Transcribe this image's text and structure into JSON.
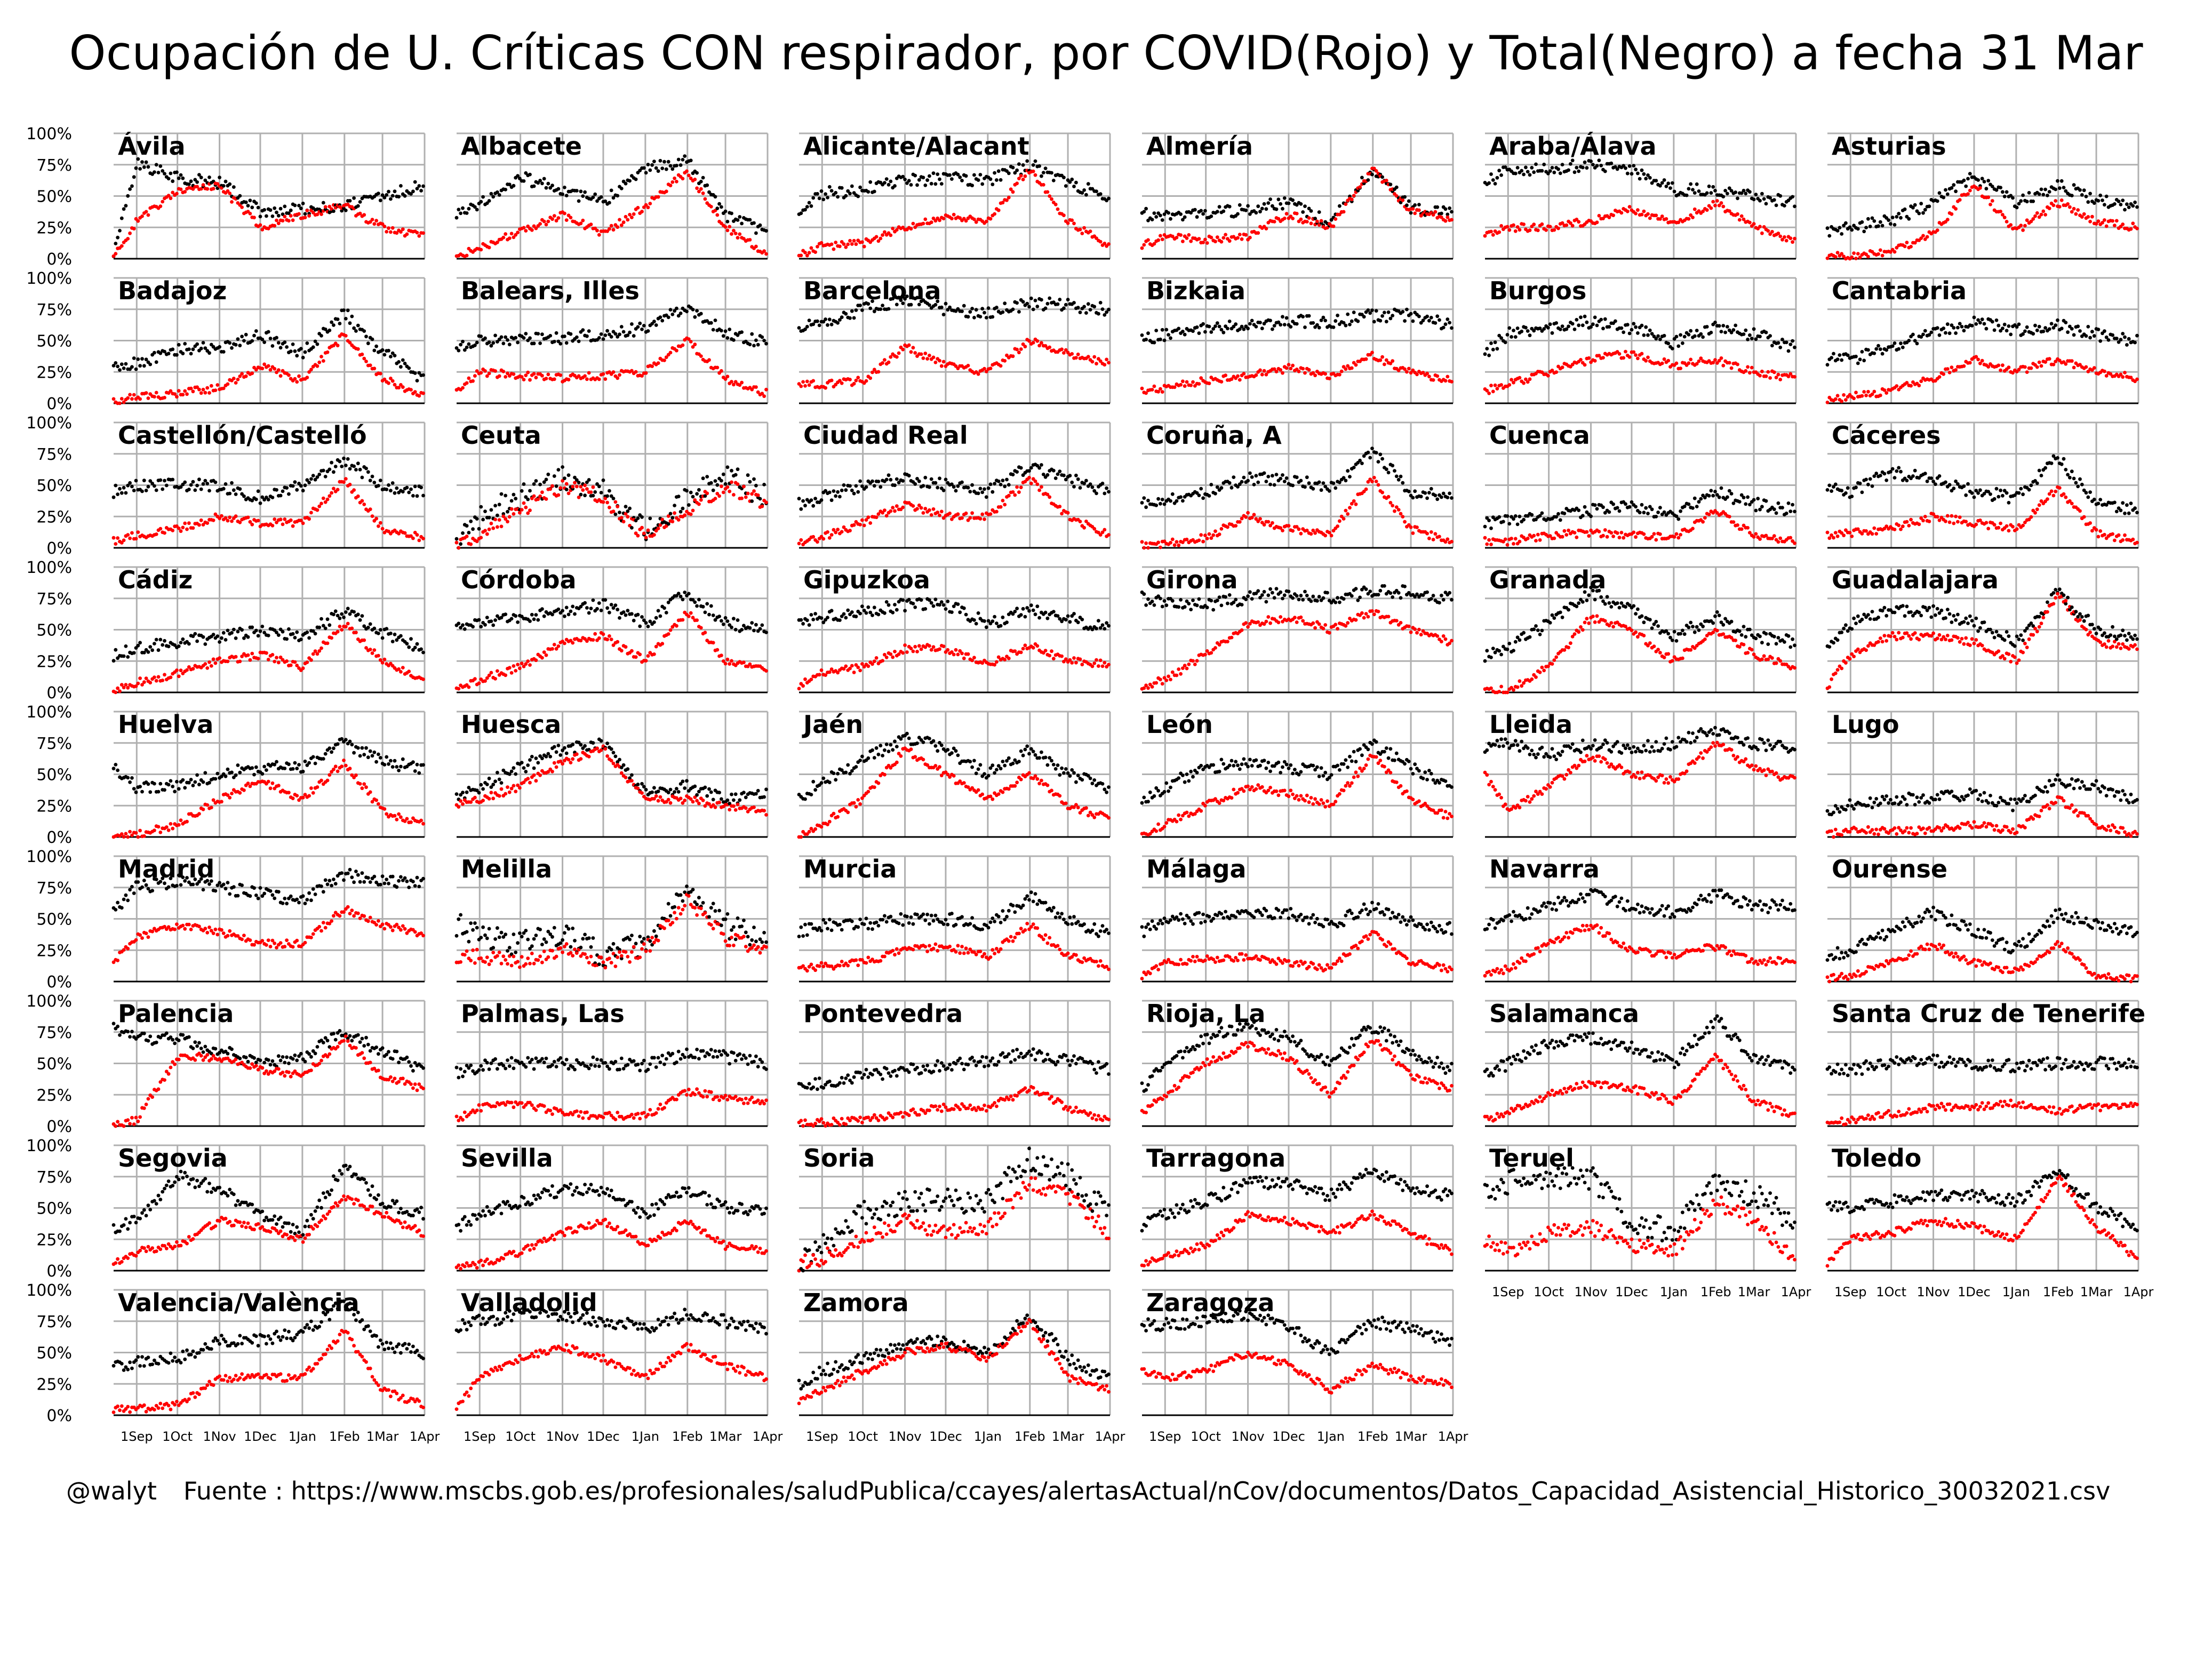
{
  "title": "Ocupación de U. Críticas CON respirador, por COVID(Rojo) y Total(Negro) a fecha 31 Mar",
  "footer": {
    "handle": "@walyt",
    "source": "Fuente : https://www.mscbs.gob.es/profesionales/saludPublica/ccayes/alertasActual/nCov/documentos/Datos_Capacidad_Asistencial_Historico_30032021.csv"
  },
  "colors": {
    "covid": "#ff0000",
    "total": "#000000",
    "grid": "#b0b0b0"
  },
  "chart_data": {
    "type": "scatter",
    "layout": "small-multiples 6 columns",
    "y_ticks": [
      "100%",
      "75%",
      "50%",
      "25%",
      "0%"
    ],
    "ylim": [
      0,
      100
    ],
    "x_ticks": [
      "1Sep",
      "1Oct",
      "1Nov",
      "1Dec",
      "1Jan",
      "1Feb",
      "1Mar",
      "1Apr"
    ],
    "xlim": [
      "2020-08-15",
      "2021-04-01"
    ],
    "series_colors": {
      "covid": "red",
      "total": "black"
    },
    "knot_dates": [
      "Aug 15",
      "Sep 1",
      "Oct 1",
      "Nov 1",
      "Dec 1",
      "Jan 1",
      "Feb 1",
      "Mar 1",
      "Mar 31"
    ],
    "panels": [
      {
        "name": "Ávila",
        "total": [
          5,
          75,
          65,
          60,
          38,
          40,
          42,
          50,
          58
        ],
        "covid": [
          0,
          30,
          55,
          58,
          25,
          35,
          42,
          25,
          18
        ]
      },
      {
        "name": "Albacete",
        "total": [
          35,
          45,
          65,
          55,
          45,
          72,
          78,
          35,
          22
        ],
        "covid": [
          3,
          8,
          22,
          35,
          20,
          42,
          70,
          25,
          5
        ]
      },
      {
        "name": "Alicante/Alacant",
        "total": [
          40,
          52,
          55,
          62,
          65,
          62,
          75,
          60,
          50
        ],
        "covid": [
          3,
          10,
          12,
          25,
          35,
          30,
          72,
          30,
          10
        ]
      },
      {
        "name": "Almería",
        "total": [
          35,
          35,
          35,
          40,
          45,
          28,
          72,
          40,
          38
        ],
        "covid": [
          10,
          18,
          15,
          18,
          35,
          25,
          72,
          38,
          32
        ]
      },
      {
        "name": "Araba/Álava",
        "total": [
          60,
          70,
          72,
          75,
          70,
          55,
          55,
          50,
          45
        ],
        "covid": [
          20,
          25,
          25,
          30,
          40,
          28,
          45,
          25,
          15
        ]
      },
      {
        "name": "Asturias",
        "total": [
          22,
          25,
          30,
          45,
          65,
          45,
          58,
          48,
          40
        ],
        "covid": [
          2,
          2,
          5,
          20,
          60,
          22,
          45,
          30,
          25
        ]
      },
      {
        "name": "Badajoz",
        "total": [
          28,
          32,
          42,
          45,
          55,
          40,
          72,
          40,
          20
        ],
        "covid": [
          2,
          5,
          8,
          12,
          30,
          18,
          55,
          20,
          5
        ]
      },
      {
        "name": "Balears, Illes",
        "total": [
          45,
          50,
          52,
          52,
          55,
          60,
          78,
          55,
          48
        ],
        "covid": [
          10,
          25,
          22,
          20,
          22,
          25,
          50,
          20,
          8
        ]
      },
      {
        "name": "Barcelona",
        "total": [
          60,
          65,
          75,
          82,
          75,
          72,
          80,
          78,
          75
        ],
        "covid": [
          15,
          15,
          18,
          45,
          30,
          25,
          50,
          40,
          32
        ]
      },
      {
        "name": "Bizkaia",
        "total": [
          50,
          55,
          60,
          62,
          65,
          65,
          70,
          70,
          62
        ],
        "covid": [
          10,
          12,
          18,
          22,
          28,
          22,
          38,
          25,
          18
        ]
      },
      {
        "name": "Burgos",
        "total": [
          40,
          55,
          60,
          65,
          60,
          48,
          60,
          55,
          45
        ],
        "covid": [
          10,
          15,
          25,
          35,
          40,
          30,
          35,
          25,
          20
        ]
      },
      {
        "name": "Cantabria",
        "total": [
          35,
          35,
          45,
          55,
          65,
          58,
          62,
          55,
          50
        ],
        "covid": [
          2,
          5,
          10,
          20,
          35,
          25,
          35,
          25,
          20
        ]
      },
      {
        "name": "Castellón/Castelló",
        "total": [
          45,
          50,
          50,
          50,
          40,
          50,
          70,
          50,
          45
        ],
        "covid": [
          5,
          10,
          15,
          25,
          20,
          20,
          55,
          15,
          8
        ]
      },
      {
        "name": "Ceuta",
        "total": [
          0,
          25,
          40,
          55,
          45,
          12,
          40,
          60,
          40
        ],
        "covid": [
          0,
          10,
          30,
          50,
          40,
          8,
          30,
          50,
          35
        ]
      },
      {
        "name": "Ciudad Real",
        "total": [
          35,
          40,
          50,
          55,
          50,
          45,
          65,
          55,
          45
        ],
        "covid": [
          5,
          8,
          20,
          35,
          25,
          25,
          55,
          25,
          10
        ]
      },
      {
        "name": "Coruña, A",
        "total": [
          35,
          38,
          45,
          55,
          55,
          48,
          78,
          45,
          40
        ],
        "covid": [
          2,
          3,
          8,
          25,
          15,
          12,
          55,
          15,
          5
        ]
      },
      {
        "name": "Cuenca",
        "total": [
          20,
          22,
          25,
          30,
          35,
          25,
          45,
          35,
          30
        ],
        "covid": [
          5,
          5,
          10,
          12,
          10,
          8,
          30,
          10,
          5
        ]
      },
      {
        "name": "Cáceres",
        "total": [
          50,
          45,
          60,
          55,
          45,
          40,
          72,
          35,
          30
        ],
        "covid": [
          10,
          12,
          15,
          25,
          20,
          15,
          48,
          12,
          5
        ]
      },
      {
        "name": "Cádiz",
        "total": [
          30,
          35,
          40,
          45,
          50,
          45,
          65,
          48,
          35
        ],
        "covid": [
          2,
          8,
          15,
          25,
          30,
          20,
          55,
          25,
          10
        ]
      },
      {
        "name": "Córdoba",
        "total": [
          50,
          55,
          60,
          65,
          70,
          55,
          80,
          55,
          50
        ],
        "covid": [
          2,
          10,
          20,
          40,
          45,
          25,
          65,
          25,
          20
        ]
      },
      {
        "name": "Gipuzkoa",
        "total": [
          55,
          60,
          65,
          70,
          70,
          55,
          65,
          60,
          50
        ],
        "covid": [
          5,
          15,
          20,
          35,
          35,
          22,
          38,
          25,
          22
        ]
      },
      {
        "name": "Girona",
        "total": [
          75,
          72,
          70,
          75,
          80,
          75,
          80,
          80,
          75
        ],
        "covid": [
          5,
          10,
          30,
          55,
          60,
          50,
          65,
          50,
          40
        ]
      },
      {
        "name": "Granada",
        "total": [
          30,
          35,
          55,
          80,
          65,
          45,
          60,
          45,
          40
        ],
        "covid": [
          2,
          2,
          20,
          60,
          50,
          25,
          50,
          30,
          20
        ]
      },
      {
        "name": "Guadalajara",
        "total": [
          40,
          55,
          65,
          65,
          55,
          40,
          80,
          50,
          45
        ],
        "covid": [
          5,
          30,
          45,
          45,
          40,
          25,
          78,
          40,
          35
        ]
      },
      {
        "name": "Huelva",
        "total": [
          55,
          40,
          40,
          50,
          55,
          55,
          75,
          60,
          55
        ],
        "covid": [
          0,
          2,
          10,
          30,
          45,
          30,
          60,
          20,
          10
        ]
      },
      {
        "name": "Huesca",
        "total": [
          30,
          40,
          55,
          70,
          75,
          35,
          40,
          30,
          35
        ],
        "covid": [
          25,
          30,
          40,
          60,
          70,
          30,
          30,
          25,
          20
        ]
      },
      {
        "name": "Jaén",
        "total": [
          30,
          45,
          60,
          80,
          70,
          50,
          70,
          50,
          40
        ],
        "covid": [
          2,
          10,
          30,
          70,
          50,
          30,
          50,
          25,
          15
        ]
      },
      {
        "name": "León",
        "total": [
          30,
          40,
          55,
          60,
          55,
          50,
          75,
          55,
          40
        ],
        "covid": [
          2,
          10,
          25,
          40,
          35,
          25,
          65,
          30,
          15
        ]
      },
      {
        "name": "Lleida",
        "total": [
          70,
          75,
          65,
          75,
          70,
          75,
          85,
          75,
          70
        ],
        "covid": [
          50,
          20,
          40,
          65,
          50,
          45,
          75,
          55,
          45
        ]
      },
      {
        "name": "Lugo",
        "total": [
          20,
          25,
          30,
          30,
          35,
          25,
          45,
          40,
          30
        ],
        "covid": [
          2,
          5,
          5,
          5,
          10,
          5,
          30,
          10,
          2
        ]
      },
      {
        "name": "Madrid",
        "total": [
          55,
          75,
          80,
          75,
          70,
          65,
          85,
          80,
          78
        ],
        "covid": [
          15,
          35,
          45,
          40,
          30,
          30,
          58,
          45,
          38
        ]
      },
      {
        "name": "Melilla",
        "total": [
          45,
          35,
          30,
          40,
          20,
          30,
          75,
          45,
          35
        ],
        "covid": [
          20,
          20,
          15,
          25,
          15,
          25,
          65,
          35,
          25
        ]
      },
      {
        "name": "Murcia",
        "total": [
          40,
          45,
          45,
          50,
          50,
          45,
          68,
          50,
          38
        ],
        "covid": [
          10,
          12,
          15,
          25,
          28,
          20,
          45,
          20,
          12
        ]
      },
      {
        "name": "Málaga",
        "total": [
          40,
          50,
          50,
          55,
          55,
          45,
          60,
          48,
          42
        ],
        "covid": [
          5,
          15,
          18,
          20,
          15,
          10,
          40,
          15,
          10
        ]
      },
      {
        "name": "Navarra",
        "total": [
          45,
          50,
          60,
          70,
          60,
          55,
          70,
          60,
          60
        ],
        "covid": [
          5,
          10,
          30,
          45,
          25,
          20,
          28,
          15,
          18
        ]
      },
      {
        "name": "Ourense",
        "total": [
          20,
          25,
          40,
          55,
          40,
          25,
          55,
          45,
          40
        ],
        "covid": [
          2,
          5,
          15,
          30,
          15,
          8,
          30,
          5,
          2
        ]
      },
      {
        "name": "Palencia",
        "total": [
          80,
          70,
          70,
          60,
          50,
          55,
          75,
          60,
          45
        ],
        "covid": [
          0,
          5,
          55,
          55,
          45,
          40,
          70,
          40,
          30
        ]
      },
      {
        "name": "Palmas, Las",
        "total": [
          42,
          48,
          50,
          50,
          50,
          48,
          58,
          55,
          50
        ],
        "covid": [
          5,
          15,
          18,
          10,
          8,
          8,
          28,
          22,
          20
        ]
      },
      {
        "name": "Pontevedra",
        "total": [
          32,
          35,
          40,
          45,
          48,
          52,
          58,
          52,
          45
        ],
        "covid": [
          2,
          3,
          5,
          10,
          15,
          15,
          30,
          15,
          5
        ]
      },
      {
        "name": "Rioja, La",
        "total": [
          30,
          50,
          70,
          80,
          70,
          50,
          80,
          60,
          45
        ],
        "covid": [
          10,
          25,
          50,
          65,
          55,
          25,
          70,
          40,
          30
        ]
      },
      {
        "name": "Salamanca",
        "total": [
          40,
          50,
          65,
          70,
          62,
          50,
          85,
          55,
          45
        ],
        "covid": [
          5,
          10,
          25,
          35,
          30,
          20,
          55,
          20,
          8
        ]
      },
      {
        "name": "Santa Cruz de Tenerife",
        "total": [
          45,
          45,
          50,
          52,
          50,
          48,
          50,
          50,
          50
        ],
        "covid": [
          2,
          5,
          10,
          15,
          15,
          18,
          12,
          15,
          18
        ]
      },
      {
        "name": "Segovia",
        "total": [
          35,
          40,
          75,
          65,
          45,
          30,
          85,
          55,
          45
        ],
        "covid": [
          5,
          15,
          20,
          40,
          35,
          25,
          60,
          45,
          30
        ]
      },
      {
        "name": "Sevilla",
        "total": [
          35,
          45,
          55,
          65,
          65,
          45,
          65,
          50,
          48
        ],
        "covid": [
          2,
          5,
          15,
          30,
          40,
          20,
          40,
          20,
          15
        ]
      },
      {
        "name": "Soria",
        "total": [
          5,
          20,
          45,
          55,
          55,
          55,
          90,
          75,
          45
        ],
        "covid": [
          5,
          10,
          25,
          40,
          30,
          35,
          70,
          60,
          30
        ]
      },
      {
        "name": "Tarragona",
        "total": [
          35,
          45,
          55,
          70,
          70,
          60,
          80,
          65,
          60
        ],
        "covid": [
          5,
          12,
          20,
          45,
          40,
          30,
          45,
          30,
          15
        ]
      },
      {
        "name": "Teruel",
        "total": [
          60,
          70,
          75,
          75,
          40,
          30,
          70,
          60,
          40
        ],
        "covid": [
          25,
          15,
          30,
          35,
          20,
          15,
          55,
          40,
          10
        ]
      },
      {
        "name": "Toledo",
        "total": [
          50,
          50,
          55,
          60,
          60,
          55,
          80,
          50,
          35
        ],
        "covid": [
          5,
          25,
          30,
          40,
          35,
          25,
          75,
          35,
          10
        ]
      },
      {
        "name": "Valencia/València",
        "total": [
          40,
          42,
          45,
          60,
          60,
          65,
          90,
          55,
          50
        ],
        "covid": [
          5,
          5,
          8,
          30,
          30,
          30,
          68,
          20,
          8
        ]
      },
      {
        "name": "Valladolid",
        "total": [
          70,
          75,
          80,
          80,
          75,
          70,
          80,
          75,
          70
        ],
        "covid": [
          5,
          30,
          45,
          55,
          45,
          30,
          55,
          40,
          30
        ]
      },
      {
        "name": "Zamora",
        "total": [
          25,
          35,
          45,
          55,
          60,
          50,
          80,
          45,
          30
        ],
        "covid": [
          10,
          20,
          35,
          50,
          55,
          45,
          75,
          30,
          20
        ]
      },
      {
        "name": "Zaragoza",
        "total": [
          72,
          72,
          75,
          80,
          70,
          50,
          75,
          68,
          60
        ],
        "covid": [
          35,
          30,
          35,
          50,
          40,
          20,
          40,
          30,
          25
        ]
      }
    ]
  }
}
